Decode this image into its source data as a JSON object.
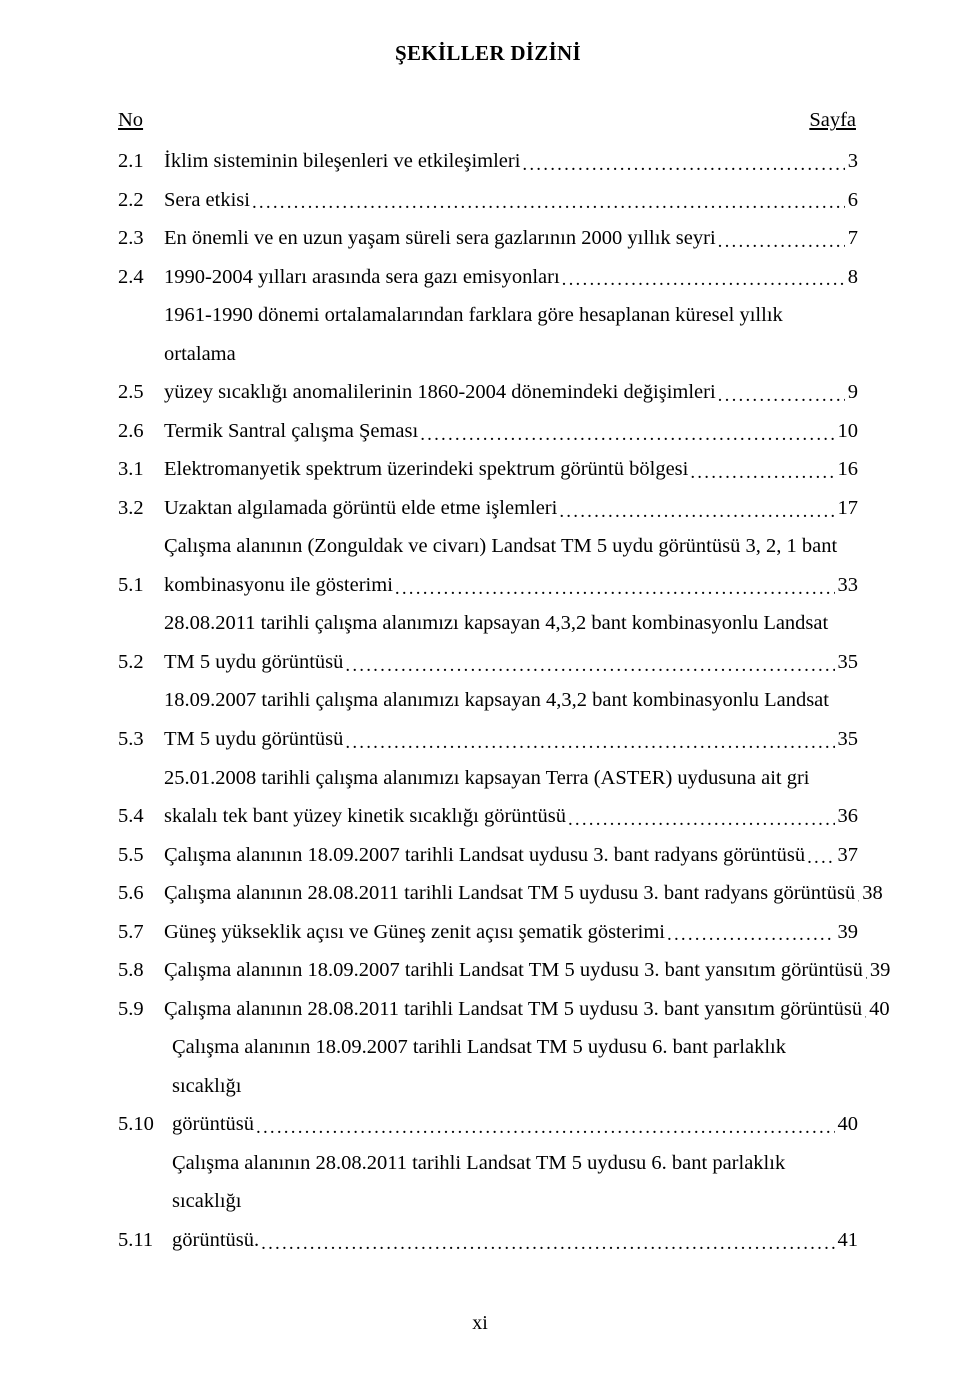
{
  "title": "ŞEKİLLER DİZİNİ",
  "header": {
    "no": "No",
    "sayfa": "Sayfa"
  },
  "entries": [
    {
      "num": "2.1",
      "lines": [
        "İklim sisteminin bileşenleri ve etkileşimleri"
      ],
      "page": "3"
    },
    {
      "num": "2.2",
      "lines": [
        "Sera etkisi"
      ],
      "page": "6"
    },
    {
      "num": "2.3",
      "lines": [
        "En önemli ve en uzun yaşam süreli sera gazlarının 2000 yıllık seyri"
      ],
      "page": "7"
    },
    {
      "num": "2.4",
      "lines": [
        "1990-2004 yılları arasında sera gazı emisyonları"
      ],
      "page": "8"
    },
    {
      "num": "2.5",
      "lines": [
        "1961-1990 dönemi ortalamalarından farklara göre hesaplanan küresel yıllık ortalama",
        "yüzey sıcaklığı anomalilerinin 1860-2004 dönemindeki değişimleri"
      ],
      "page": "9"
    },
    {
      "num": "2.6",
      "lines": [
        "Termik Santral çalışma Şeması"
      ],
      "page": "10"
    },
    {
      "num": "3.1",
      "lines": [
        "Elektromanyetik spektrum üzerindeki spektrum görüntü bölgesi"
      ],
      "page": "16"
    },
    {
      "num": "3.2",
      "lines": [
        "Uzaktan algılamada görüntü elde etme işlemleri"
      ],
      "page": "17"
    },
    {
      "num": "5.1",
      "lines": [
        "Çalışma alanının (Zonguldak ve civarı) Landsat TM 5 uydu görüntüsü 3, 2, 1 bant",
        "kombinasyonu ile gösterimi"
      ],
      "page": "33"
    },
    {
      "num": "5.2",
      "lines": [
        "28.08.2011 tarihli çalışma alanımızı kapsayan 4,3,2 bant kombinasyonlu Landsat",
        "TM 5 uydu görüntüsü"
      ],
      "page": "35"
    },
    {
      "num": "5.3",
      "lines": [
        "18.09.2007 tarihli çalışma alanımızı kapsayan 4,3,2 bant kombinasyonlu Landsat",
        "TM 5 uydu görüntüsü"
      ],
      "page": "35"
    },
    {
      "num": "5.4",
      "lines": [
        "25.01.2008 tarihli çalışma alanımızı kapsayan Terra (ASTER) uydusuna ait gri",
        "skalalı tek bant yüzey kinetik sıcaklığı görüntüsü"
      ],
      "page": "36"
    },
    {
      "num": "5.5",
      "lines": [
        "Çalışma alanının 18.09.2007 tarihli Landsat uydusu 3. bant radyans görüntüsü"
      ],
      "page": "37"
    },
    {
      "num": "5.6",
      "lines": [
        "Çalışma alanının 28.08.2011 tarihli Landsat TM 5 uydusu 3. bant radyans görüntüsü"
      ],
      "page": "38"
    },
    {
      "num": "5.7",
      "lines": [
        "Güneş yükseklik açısı ve Güneş zenit açısı şematik gösterimi"
      ],
      "page": "39"
    },
    {
      "num": "5.8",
      "lines": [
        "Çalışma alanının 18.09.2007 tarihli Landsat TM 5 uydusu 3. bant yansıtım görüntüsü"
      ],
      "page": "39"
    },
    {
      "num": "5.9",
      "lines": [
        "Çalışma alanının 28.08.2011 tarihli Landsat TM 5 uydusu 3. bant yansıtım görüntüsü"
      ],
      "page": "40"
    },
    {
      "num": "5.10",
      "lines": [
        "Çalışma alanının 18.09.2007 tarihli Landsat TM 5 uydusu 6. bant parlaklık sıcaklığı",
        "görüntüsü"
      ],
      "page": "40"
    },
    {
      "num": "5.11",
      "lines": [
        "Çalışma alanının 28.08.2011 tarihli Landsat TM 5 uydusu 6. bant parlaklık sıcaklığı",
        "görüntüsü."
      ],
      "page": "41"
    }
  ],
  "footer": "xi"
}
